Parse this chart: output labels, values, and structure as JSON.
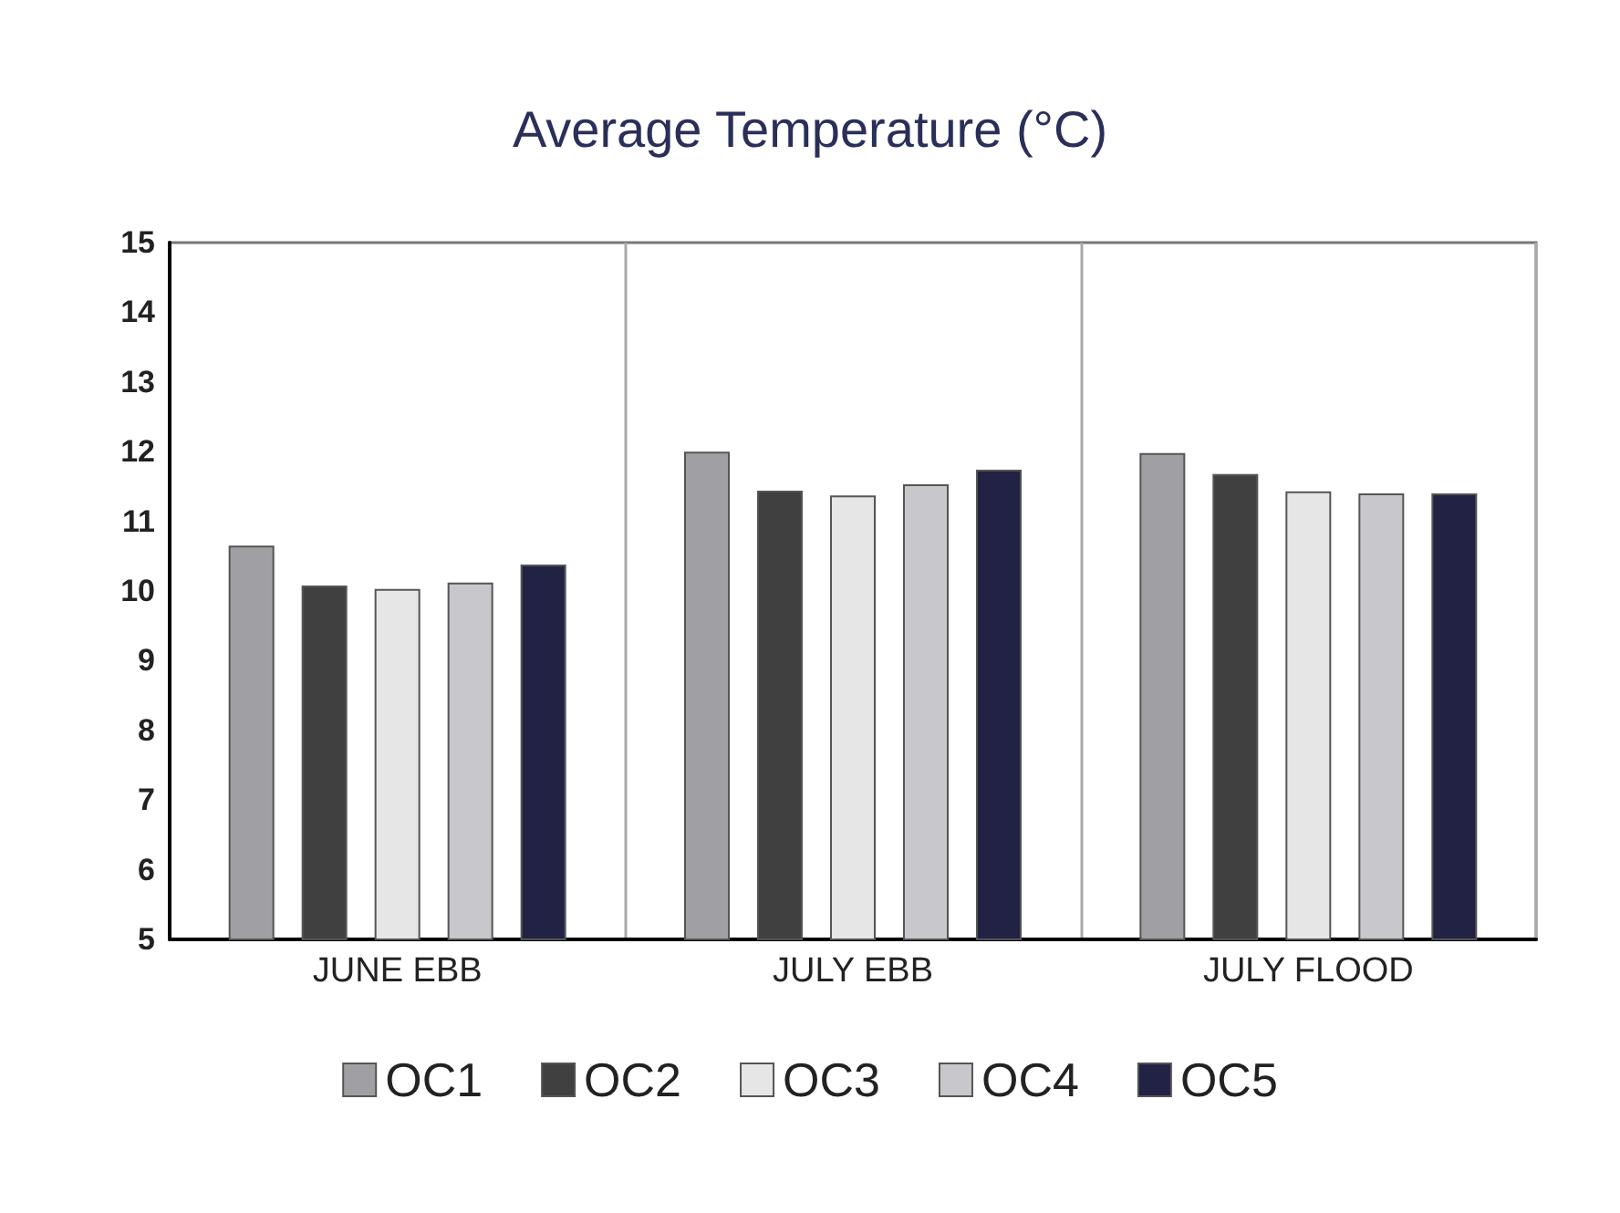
{
  "chart_data": {
    "type": "bar",
    "title": "Average Temperature (°C)",
    "categories": [
      "JUNE EBB",
      "JULY EBB",
      "JULY FLOOD"
    ],
    "series": [
      {
        "name": "OC1",
        "color": "#a0a0a4",
        "values": [
          10.65,
          12.0,
          11.98
        ]
      },
      {
        "name": "OC2",
        "color": "#404040",
        "values": [
          10.08,
          11.44,
          11.68
        ]
      },
      {
        "name": "OC3",
        "color": "#e6e6e6",
        "values": [
          10.03,
          11.37,
          11.43
        ]
      },
      {
        "name": "OC4",
        "color": "#c8c8cc",
        "values": [
          10.12,
          11.53,
          11.4
        ]
      },
      {
        "name": "OC5",
        "color": "#222244",
        "values": [
          10.38,
          11.74,
          11.4
        ]
      }
    ],
    "ylim": [
      5,
      15
    ],
    "yticks": [
      5,
      6,
      7,
      8,
      9,
      10,
      11,
      12,
      13,
      14,
      15
    ],
    "grid": "x",
    "legend": "bottom"
  }
}
